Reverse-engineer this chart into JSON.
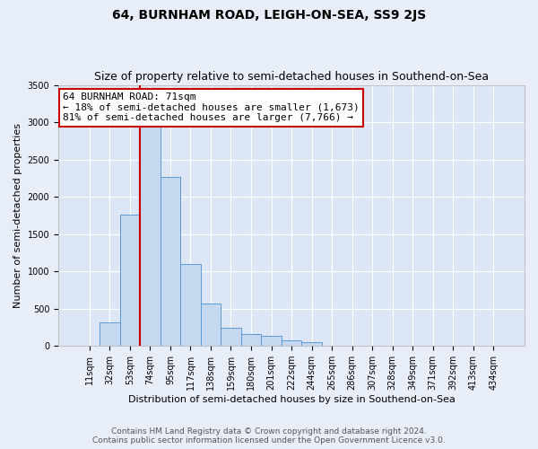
{
  "title": "64, BURNHAM ROAD, LEIGH-ON-SEA, SS9 2JS",
  "subtitle": "Size of property relative to semi-detached houses in Southend-on-Sea",
  "xlabel": "Distribution of semi-detached houses by size in Southend-on-Sea",
  "ylabel": "Number of semi-detached properties",
  "footer_line1": "Contains HM Land Registry data © Crown copyright and database right 2024.",
  "footer_line2": "Contains public sector information licensed under the Open Government Licence v3.0.",
  "annotation_title": "64 BURNHAM ROAD: 71sqm",
  "annotation_line1": "← 18% of semi-detached houses are smaller (1,673)",
  "annotation_line2": "81% of semi-detached houses are larger (7,766) →",
  "bar_categories": [
    "11sqm",
    "32sqm",
    "53sqm",
    "74sqm",
    "95sqm",
    "117sqm",
    "138sqm",
    "159sqm",
    "180sqm",
    "201sqm",
    "222sqm",
    "244sqm",
    "265sqm",
    "286sqm",
    "307sqm",
    "328sqm",
    "349sqm",
    "371sqm",
    "392sqm",
    "413sqm",
    "434sqm"
  ],
  "bar_values": [
    5,
    310,
    1760,
    3020,
    2270,
    1100,
    570,
    240,
    155,
    130,
    80,
    45,
    0,
    0,
    0,
    0,
    0,
    0,
    0,
    0,
    0
  ],
  "bar_color": "#c5d8f0",
  "bar_edge_color": "#5b9bd5",
  "vline_color": "#cc0000",
  "annotation_box_color": "#ffffff",
  "annotation_box_edge": "#cc0000",
  "background_color": "#e8eef8",
  "plot_bg_color": "#dce6f5",
  "grid_color": "#ffffff",
  "ylim": [
    0,
    3500
  ],
  "yticks": [
    0,
    500,
    1000,
    1500,
    2000,
    2500,
    3000,
    3500
  ],
  "title_fontsize": 10,
  "subtitle_fontsize": 9,
  "xlabel_fontsize": 8,
  "ylabel_fontsize": 8,
  "tick_fontsize": 7,
  "footer_fontsize": 6.5,
  "ann_fontsize": 8
}
